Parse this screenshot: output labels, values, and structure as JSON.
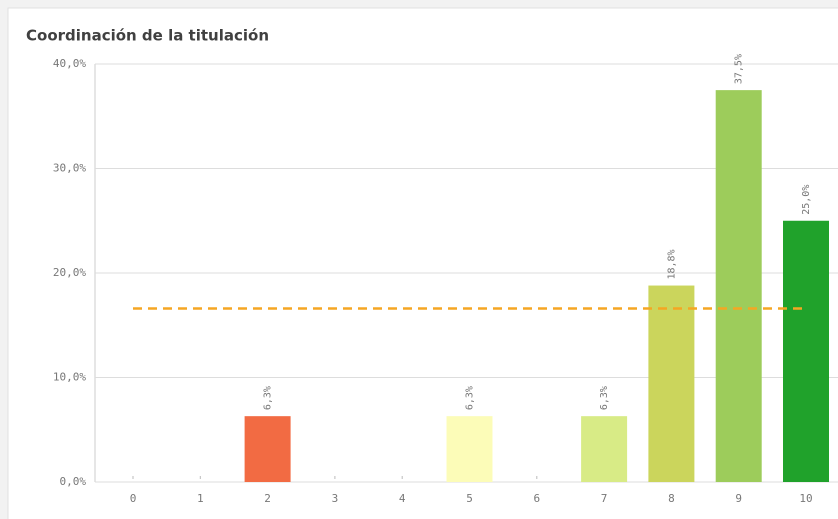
{
  "chart_data": {
    "type": "bar",
    "title": "Coordinación de la titulación",
    "categories": [
      "0",
      "1",
      "2",
      "3",
      "4",
      "5",
      "6",
      "7",
      "8",
      "9",
      "10"
    ],
    "values": [
      0,
      0,
      6.3,
      0,
      0,
      6.3,
      0,
      6.3,
      18.8,
      37.5,
      25.0
    ],
    "value_labels": [
      null,
      null,
      "6,3%",
      null,
      null,
      "6,3%",
      null,
      "6,3%",
      "18,8%",
      "37,5%",
      "25,0%"
    ],
    "colors": [
      "#bbbbbb",
      "#bbbbbb",
      "#f26b43",
      "#bbbbbb",
      "#bbbbbb",
      "#fcfcb8",
      "#bbbbbb",
      "#d8eb86",
      "#cbd55c",
      "#9dcc5b",
      "#20a22b"
    ],
    "ylim": [
      0,
      40
    ],
    "yticks": [
      {
        "value": 0,
        "label": "0,0%"
      },
      {
        "value": 10,
        "label": "10,0%"
      },
      {
        "value": 20,
        "label": "20,0%"
      },
      {
        "value": 30,
        "label": "30,0%"
      },
      {
        "value": 40,
        "label": "40,0%"
      }
    ],
    "grid": true,
    "reference_line": {
      "value": 16.6,
      "color": "#f5a623"
    }
  }
}
